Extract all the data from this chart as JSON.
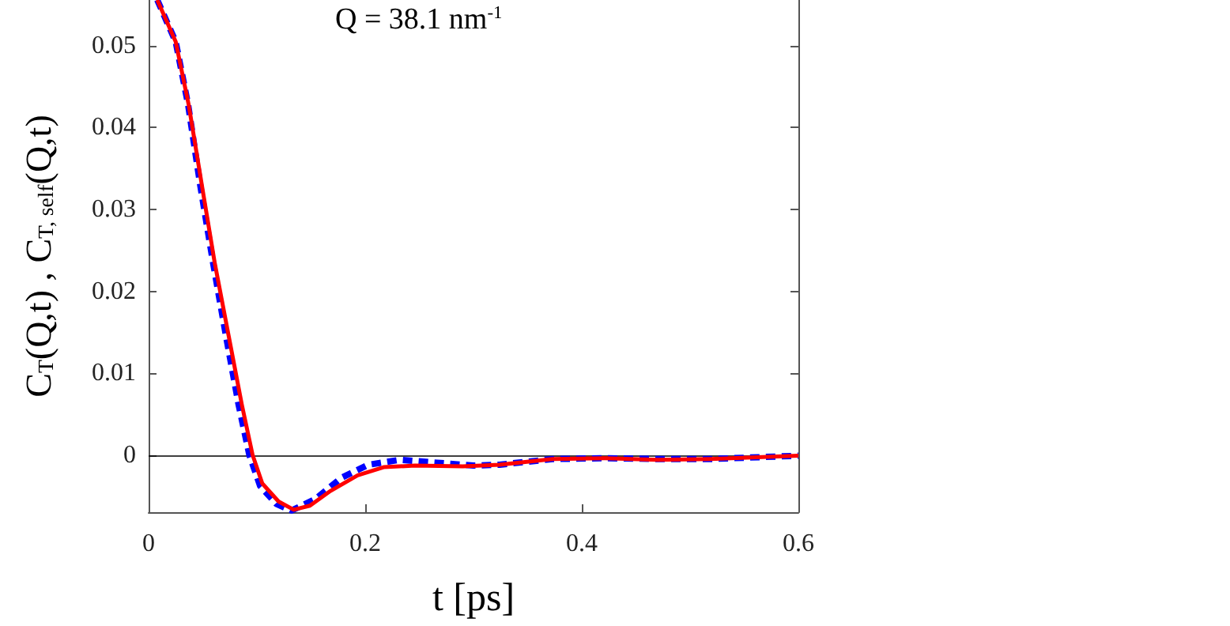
{
  "chart_data": {
    "type": "line",
    "xlabel": "t [ps]",
    "ylabel": "C$_{T}$(Q,t) , C$_{T, self}$(Q,t)",
    "annotations": [
      "Q = 38.1 nm$^{-1}$"
    ],
    "x": [
      0.008,
      0.025,
      0.037,
      0.049,
      0.061,
      0.074,
      0.086,
      0.096,
      0.105,
      0.12,
      0.134,
      0.149,
      0.168,
      0.193,
      0.217,
      0.246,
      0.29,
      0.324,
      0.373,
      0.422,
      0.47,
      0.519,
      0.6
    ],
    "series": [
      {
        "color": "#ff0000",
        "line_style": "solid",
        "values": [
          0.0556,
          0.0505,
          0.0428,
          0.0331,
          0.0235,
          0.0145,
          0.0062,
          0,
          -0.0035,
          -0.0057,
          -0.0067,
          -0.0062,
          -0.0044,
          -0.0025,
          -0.0015,
          -0.0013,
          -0.0014,
          -0.0012,
          -0.0005,
          -0.0004,
          -0.0006,
          -0.0005,
          -0.0001
        ]
      },
      {
        "color": "#0000ff",
        "line_style": "dashed",
        "x": [
          0.008,
          0.025,
          0.0365,
          0.0475,
          0.0595,
          0.0715,
          0.083,
          0.093,
          0.103,
          0.118,
          0.132,
          0.154,
          0.178,
          0.203,
          0.232,
          0.261,
          0.3,
          0.324,
          0.373,
          0.422,
          0.47,
          0.519,
          0.6
        ],
        "values": [
          0.0556,
          0.0505,
          0.0428,
          0.0331,
          0.0235,
          0.0145,
          0.0062,
          0,
          -0.0038,
          -0.006,
          -0.0068,
          -0.0054,
          -0.0028,
          -0.0012,
          -0.0006,
          -0.0009,
          -0.0013,
          -0.0012,
          -0.0005,
          -0.0004,
          -0.0005,
          -0.0005,
          -0.0001
        ]
      }
    ],
    "xlim": [
      0,
      0.6
    ],
    "xticks": [
      0,
      0.2,
      0.4,
      0.6
    ],
    "ylim": [
      -0.007,
      0.0556
    ],
    "yticks": [
      0,
      0.01,
      0.02,
      0.03,
      0.04,
      0.05
    ],
    "ref_lines": [
      {
        "axis": "y",
        "value": 0,
        "color": "#000000",
        "line_style": "solid"
      }
    ],
    "grid": false,
    "marker": "none"
  }
}
